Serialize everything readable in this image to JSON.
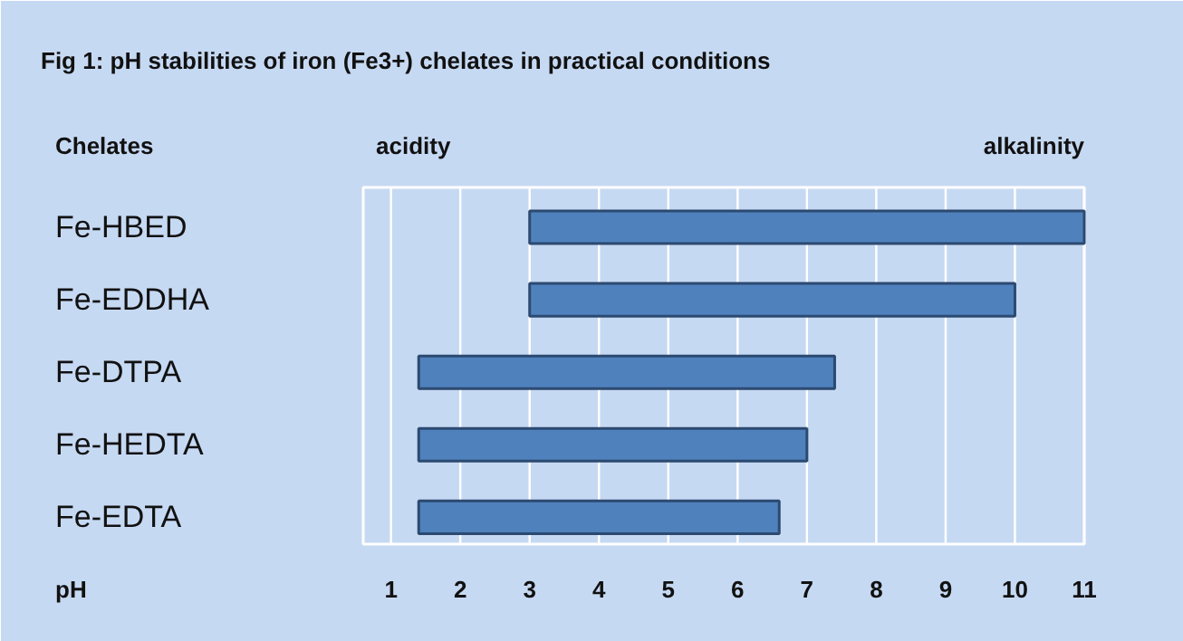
{
  "chart_data": {
    "type": "bar",
    "orientation": "horizontal",
    "title": "Fig 1: pH stabilities of iron (Fe3+)  chelates in practical  conditions",
    "ylabel": "Chelates",
    "xlabel": "pH",
    "annotations": [
      "acidity",
      "alkalinity"
    ],
    "categories": [
      "Fe-HBED",
      "Fe-EDDHA",
      "Fe-DTPA",
      "Fe-HEDTA",
      "Fe-EDTA"
    ],
    "base": [
      3,
      3,
      1.4,
      1.4,
      1.4
    ],
    "values": [
      8,
      7,
      6.0,
      5.6,
      5.2
    ],
    "color": "#4f81bd",
    "xlim": [
      0.6,
      11
    ],
    "xticks": [
      1,
      2,
      3,
      4,
      5,
      6,
      7,
      8,
      9,
      10,
      11
    ],
    "grid": "x"
  }
}
